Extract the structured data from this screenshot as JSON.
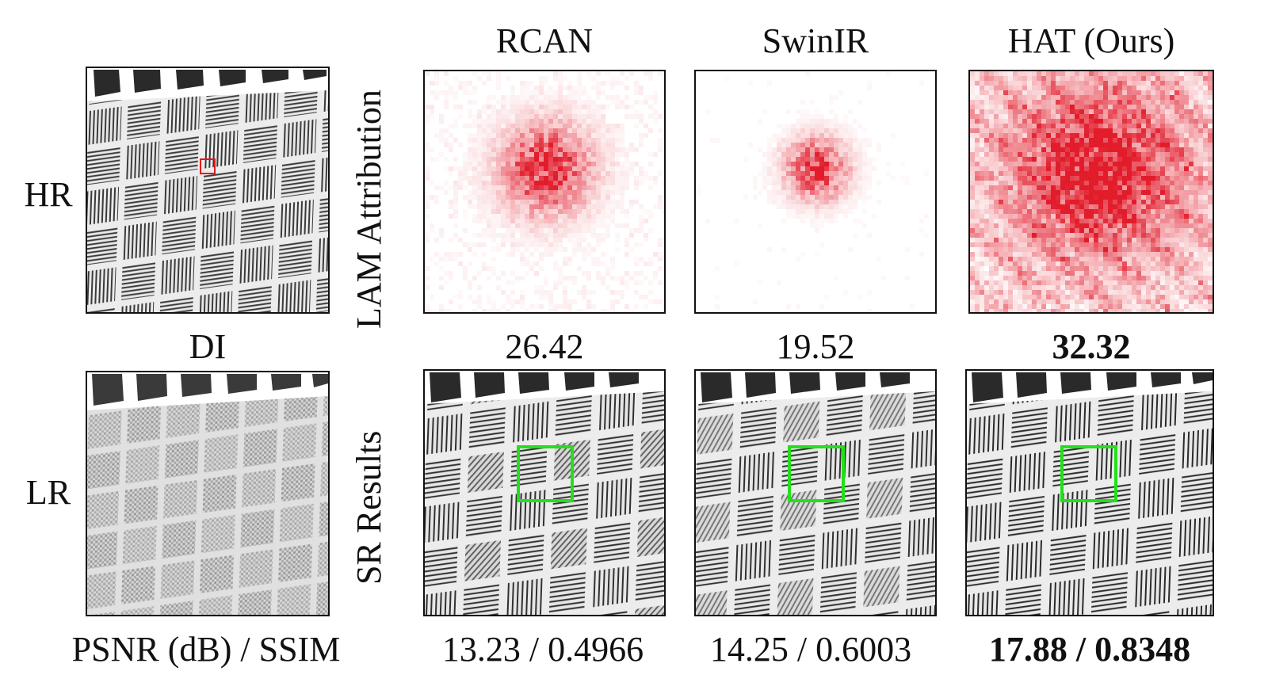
{
  "columns": {
    "rcan": "RCAN",
    "swinir": "SwinIR",
    "hat": "HAT (Ours)"
  },
  "rows": {
    "hr": "HR",
    "lr": "LR",
    "lam_label": "LAM Attribution",
    "sr_label": "SR Results"
  },
  "di": {
    "label": "DI",
    "rcan": "26.42",
    "swinir": "19.52",
    "hat": "32.32"
  },
  "metrics": {
    "label": "PSNR (dB) / SSIM",
    "rcan": "13.23 / 0.4966",
    "swinir": "14.25 / 0.6003",
    "hat": "17.88 / 0.8348"
  },
  "colors": {
    "attribution": "#e01020",
    "focus_box_hr": "#e8141c",
    "focus_box_sr": "#22e01a"
  }
}
